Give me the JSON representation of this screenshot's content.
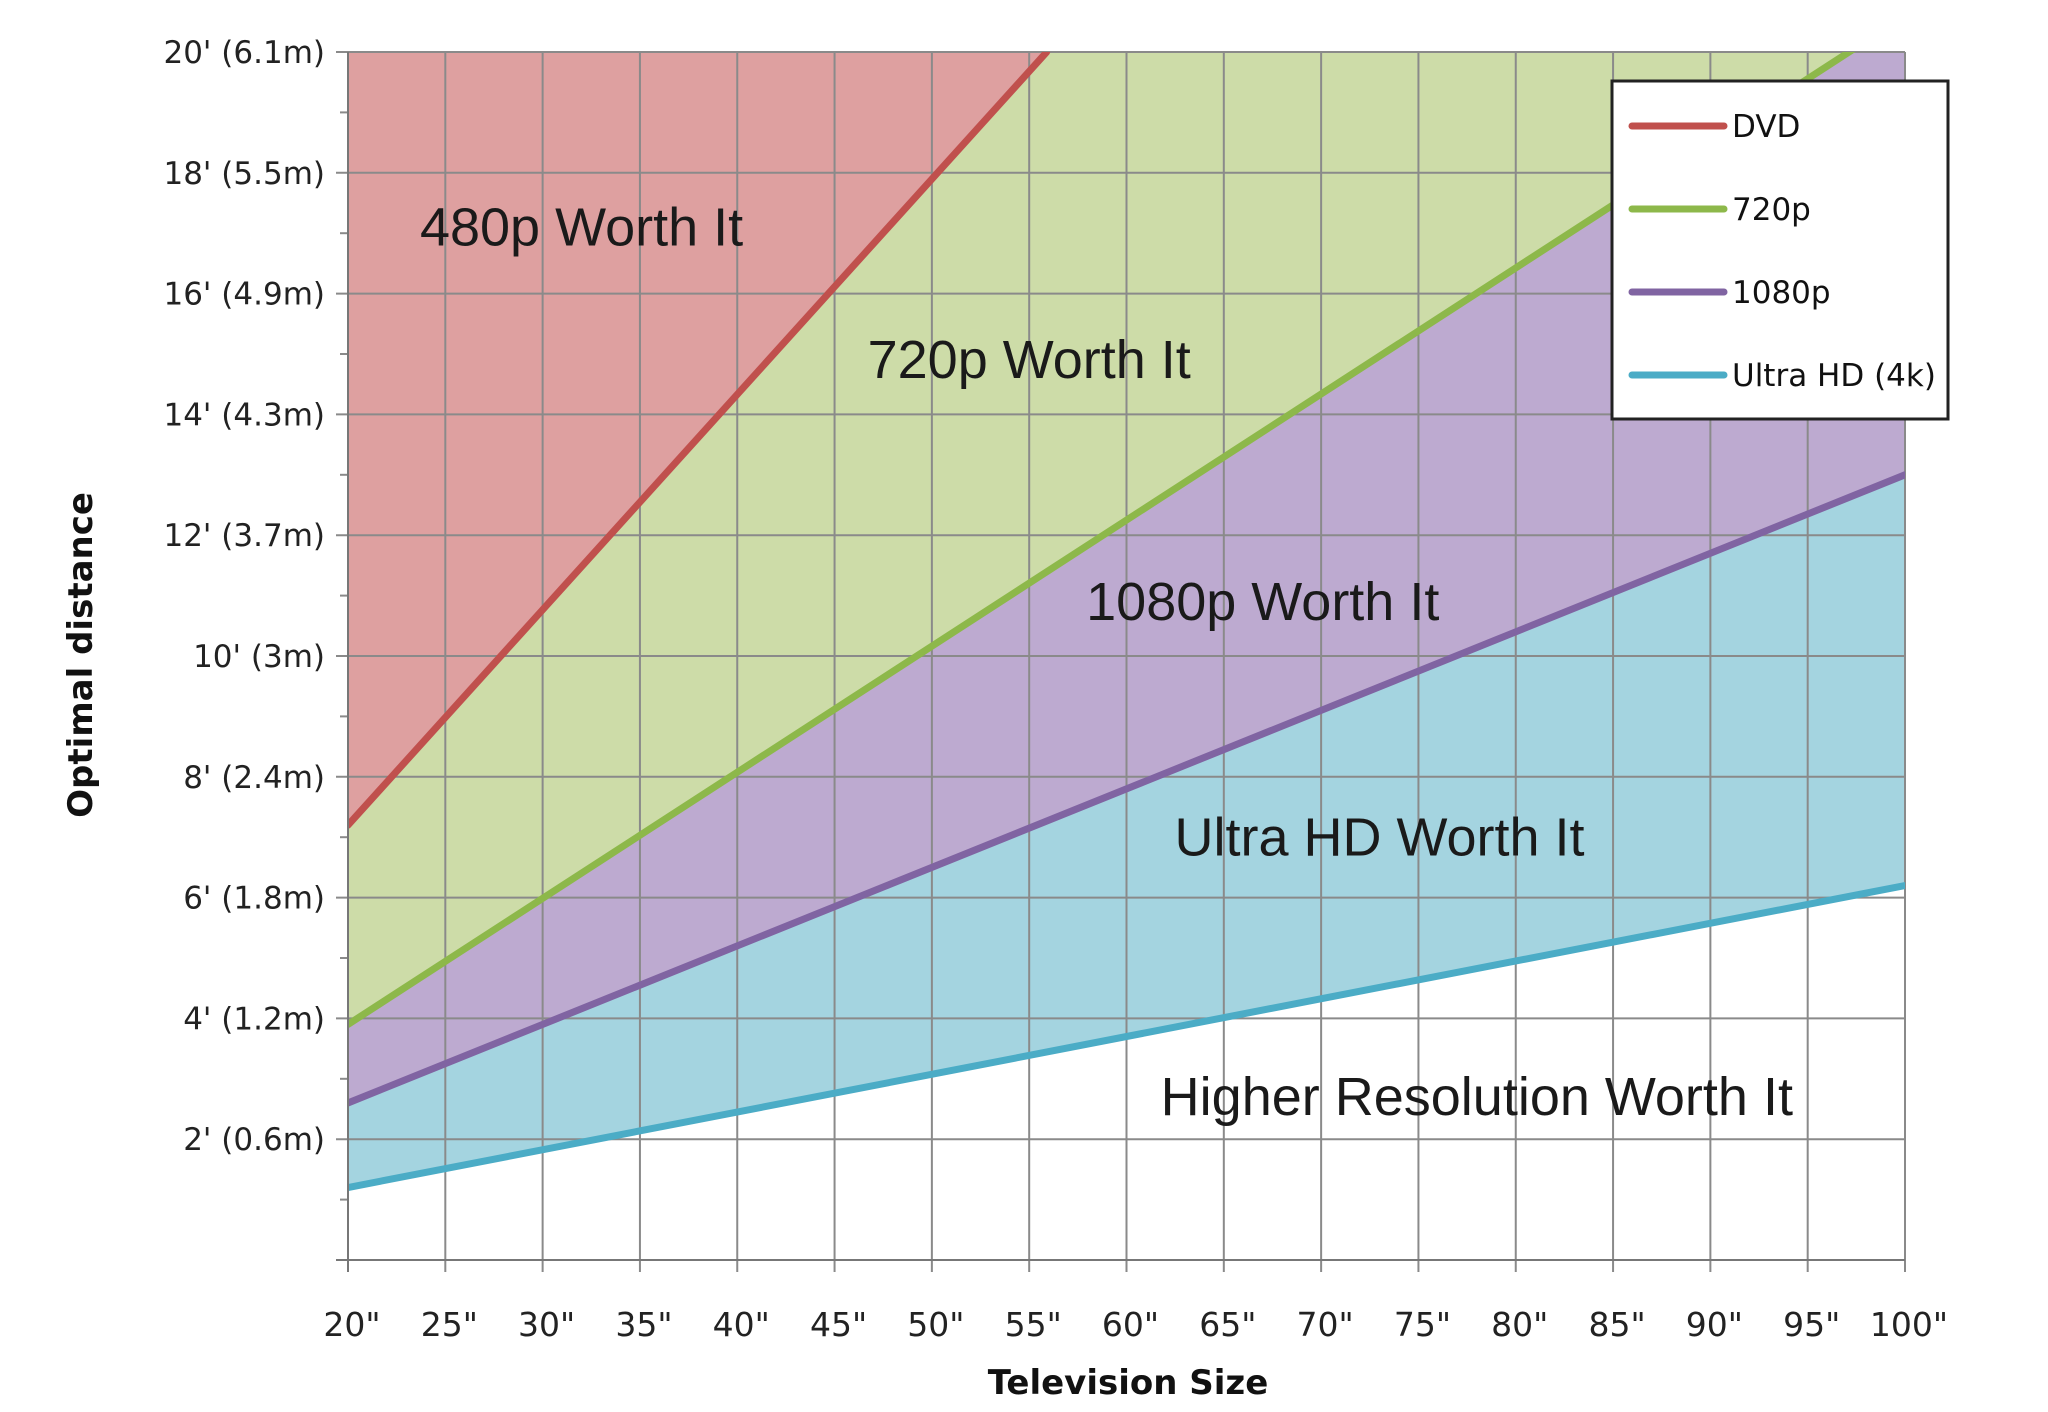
{
  "chart_data": {
    "type": "area",
    "xlabel": "Television Size",
    "ylabel": "Optimal distance",
    "x_ticks": [
      20,
      25,
      30,
      35,
      40,
      45,
      50,
      55,
      60,
      65,
      70,
      75,
      80,
      85,
      90,
      95,
      100
    ],
    "x_tick_labels": [
      "20\"",
      "25\"",
      "30\"",
      "35\"",
      "40\"",
      "45\"",
      "50\"",
      "55\"",
      "60\"",
      "65\"",
      "70\"",
      "75\"",
      "80\"",
      "85\"",
      "90\"",
      "95\"",
      "100\""
    ],
    "y_ticks": [
      2,
      4,
      6,
      8,
      10,
      12,
      14,
      16,
      18,
      20
    ],
    "y_tick_labels": [
      "2' (0.6m)",
      "4' (1.2m)",
      "6' (1.8m)",
      "8' (2.4m)",
      "10' (3m)",
      "12' (3.7m)",
      "14' (4.3m)",
      "16' (4.9m)",
      "18' (5.5m)",
      "20' (6.1m)"
    ],
    "xlim": [
      20,
      100
    ],
    "ylim": [
      0,
      20
    ],
    "grid": true,
    "legend_position": "top-right",
    "series": [
      {
        "name": "DVD",
        "color": "#c0504d",
        "x": [
          20,
          55.9
        ],
        "y": [
          7.2,
          20
        ]
      },
      {
        "name": "720p",
        "color": "#8db84a",
        "x": [
          20,
          100
        ],
        "y": [
          3.9,
          20.6
        ]
      },
      {
        "name": "1080p",
        "color": "#8064a2",
        "x": [
          20,
          100
        ],
        "y": [
          2.6,
          13.0
        ]
      },
      {
        "name": "Ultra HD (4k)",
        "color": "#4bacc6",
        "x": [
          20,
          100
        ],
        "y": [
          1.2,
          6.2
        ]
      }
    ],
    "legend": [
      "DVD",
      "720p",
      "1080p",
      "Ultra HD (4k)"
    ],
    "regions": [
      {
        "label": "480p Worth It",
        "fill": "#dea0a0",
        "x": 32,
        "y": 16.8
      },
      {
        "label": "720p Worth It",
        "fill": "#cddca8",
        "x": 55,
        "y": 14.6
      },
      {
        "label": "1080p Worth It",
        "fill": "#bdaad0",
        "x": 67,
        "y": 10.6
      },
      {
        "label": "Ultra HD Worth It",
        "fill": "#a4d4e0",
        "x": 73,
        "y": 6.7
      },
      {
        "label": "Higher Resolution Worth It",
        "fill": "#ffffff",
        "x": 78,
        "y": 2.4
      }
    ]
  }
}
